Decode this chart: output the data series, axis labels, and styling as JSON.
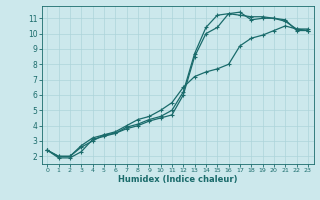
{
  "xlabel": "Humidex (Indice chaleur)",
  "ylabel": "",
  "bg_color": "#cce8ec",
  "grid_color": "#add4da",
  "line_color": "#1a6b6b",
  "xlim": [
    -0.5,
    23.5
  ],
  "ylim": [
    1.5,
    11.8
  ],
  "xticks": [
    0,
    1,
    2,
    3,
    4,
    5,
    6,
    7,
    8,
    9,
    10,
    11,
    12,
    13,
    14,
    15,
    16,
    17,
    18,
    19,
    20,
    21,
    22,
    23
  ],
  "yticks": [
    2,
    3,
    4,
    5,
    6,
    7,
    8,
    9,
    10,
    11
  ],
  "series": [
    [
      2.4,
      1.9,
      1.9,
      2.3,
      3.1,
      3.3,
      3.5,
      3.8,
      4.0,
      4.3,
      4.5,
      4.7,
      6.0,
      8.5,
      10.0,
      10.4,
      11.3,
      11.4,
      10.9,
      11.0,
      11.0,
      10.9,
      10.2,
      10.2
    ],
    [
      2.4,
      2.0,
      2.0,
      2.7,
      3.2,
      3.4,
      3.5,
      3.9,
      4.1,
      4.4,
      4.6,
      5.0,
      6.2,
      8.7,
      10.4,
      11.2,
      11.3,
      11.2,
      11.1,
      11.1,
      11.0,
      10.8,
      10.3,
      10.2
    ],
    [
      2.4,
      2.0,
      2.0,
      2.6,
      3.0,
      3.4,
      3.6,
      4.0,
      4.4,
      4.6,
      5.0,
      5.5,
      6.5,
      7.2,
      7.5,
      7.7,
      8.0,
      9.2,
      9.7,
      9.9,
      10.2,
      10.5,
      10.3,
      10.3
    ]
  ],
  "marker": "+"
}
